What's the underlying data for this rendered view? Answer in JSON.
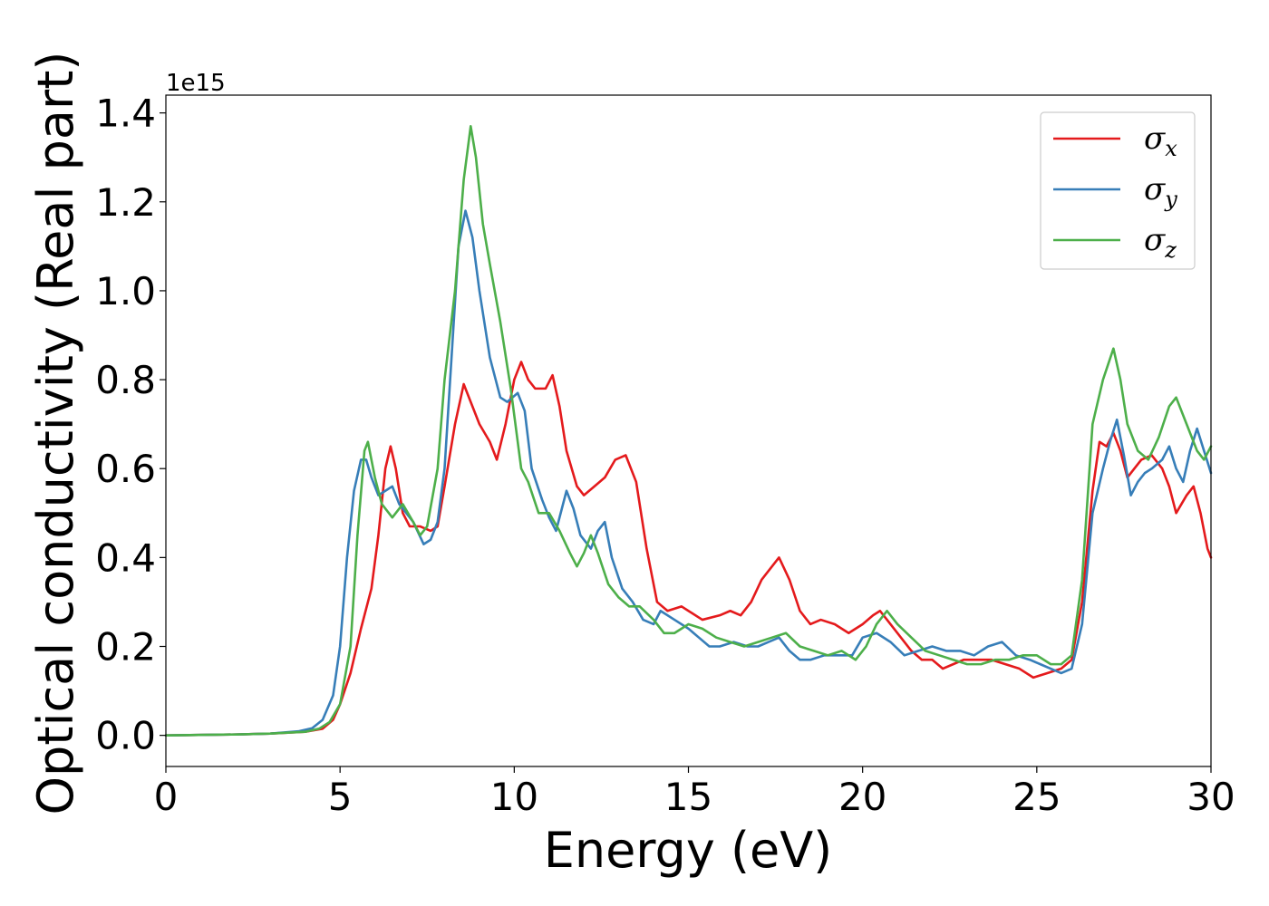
{
  "chart_data": {
    "type": "line",
    "xlabel": "Energy (eV)",
    "ylabel": "Optical conductivity (Real part)",
    "y_offset_text": "1e15",
    "xlim": [
      0,
      30
    ],
    "ylim": [
      -0.07,
      1.44
    ],
    "x_ticks": [
      0,
      5,
      10,
      15,
      20,
      25,
      30
    ],
    "x_tick_labels": [
      "0",
      "5",
      "10",
      "15",
      "20",
      "25",
      "30"
    ],
    "y_ticks": [
      0.0,
      0.2,
      0.4,
      0.6,
      0.8,
      1.0,
      1.2,
      1.4
    ],
    "y_tick_labels": [
      "0.0",
      "0.2",
      "0.4",
      "0.6",
      "0.8",
      "1.0",
      "1.2",
      "1.4"
    ],
    "grid": false,
    "legend_position": "top-right",
    "series": [
      {
        "name": "σx",
        "legend_main": "σ",
        "legend_sub": "x",
        "color": "#e41a1c",
        "points": [
          [
            0,
            0
          ],
          [
            2,
            0.002
          ],
          [
            3,
            0.004
          ],
          [
            4,
            0.008
          ],
          [
            4.5,
            0.015
          ],
          [
            4.8,
            0.035
          ],
          [
            5.0,
            0.07
          ],
          [
            5.3,
            0.14
          ],
          [
            5.6,
            0.24
          ],
          [
            5.9,
            0.33
          ],
          [
            6.1,
            0.45
          ],
          [
            6.3,
            0.6
          ],
          [
            6.45,
            0.65
          ],
          [
            6.6,
            0.6
          ],
          [
            6.8,
            0.5
          ],
          [
            7.0,
            0.47
          ],
          [
            7.3,
            0.47
          ],
          [
            7.6,
            0.46
          ],
          [
            7.8,
            0.47
          ],
          [
            8.0,
            0.56
          ],
          [
            8.3,
            0.7
          ],
          [
            8.55,
            0.79
          ],
          [
            8.75,
            0.75
          ],
          [
            9.0,
            0.7
          ],
          [
            9.3,
            0.66
          ],
          [
            9.5,
            0.62
          ],
          [
            9.75,
            0.7
          ],
          [
            10.0,
            0.8
          ],
          [
            10.2,
            0.84
          ],
          [
            10.4,
            0.8
          ],
          [
            10.6,
            0.78
          ],
          [
            10.9,
            0.78
          ],
          [
            11.1,
            0.81
          ],
          [
            11.3,
            0.74
          ],
          [
            11.5,
            0.64
          ],
          [
            11.8,
            0.56
          ],
          [
            12.0,
            0.54
          ],
          [
            12.3,
            0.56
          ],
          [
            12.6,
            0.58
          ],
          [
            12.9,
            0.62
          ],
          [
            13.2,
            0.63
          ],
          [
            13.5,
            0.57
          ],
          [
            13.8,
            0.42
          ],
          [
            14.1,
            0.3
          ],
          [
            14.4,
            0.28
          ],
          [
            14.8,
            0.29
          ],
          [
            15.0,
            0.28
          ],
          [
            15.4,
            0.26
          ],
          [
            15.9,
            0.27
          ],
          [
            16.2,
            0.28
          ],
          [
            16.5,
            0.27
          ],
          [
            16.8,
            0.3
          ],
          [
            17.1,
            0.35
          ],
          [
            17.6,
            0.4
          ],
          [
            17.9,
            0.35
          ],
          [
            18.2,
            0.28
          ],
          [
            18.5,
            0.25
          ],
          [
            18.8,
            0.26
          ],
          [
            19.2,
            0.25
          ],
          [
            19.6,
            0.23
          ],
          [
            20.0,
            0.25
          ],
          [
            20.3,
            0.27
          ],
          [
            20.5,
            0.28
          ],
          [
            20.8,
            0.25
          ],
          [
            21.1,
            0.22
          ],
          [
            21.4,
            0.19
          ],
          [
            21.7,
            0.17
          ],
          [
            22.0,
            0.17
          ],
          [
            22.3,
            0.15
          ],
          [
            22.6,
            0.16
          ],
          [
            22.9,
            0.17
          ],
          [
            23.3,
            0.17
          ],
          [
            23.7,
            0.17
          ],
          [
            24.1,
            0.16
          ],
          [
            24.5,
            0.15
          ],
          [
            24.9,
            0.13
          ],
          [
            25.3,
            0.14
          ],
          [
            25.7,
            0.15
          ],
          [
            26.0,
            0.17
          ],
          [
            26.3,
            0.3
          ],
          [
            26.6,
            0.55
          ],
          [
            26.8,
            0.66
          ],
          [
            27.0,
            0.65
          ],
          [
            27.2,
            0.68
          ],
          [
            27.4,
            0.64
          ],
          [
            27.6,
            0.58
          ],
          [
            27.8,
            0.6
          ],
          [
            28.0,
            0.62
          ],
          [
            28.3,
            0.63
          ],
          [
            28.6,
            0.6
          ],
          [
            28.8,
            0.56
          ],
          [
            29.0,
            0.5
          ],
          [
            29.3,
            0.54
          ],
          [
            29.5,
            0.56
          ],
          [
            29.7,
            0.5
          ],
          [
            29.9,
            0.42
          ],
          [
            30.0,
            0.4
          ]
        ]
      },
      {
        "name": "σy",
        "legend_main": "σ",
        "legend_sub": "y",
        "color": "#377eb8",
        "points": [
          [
            0,
            0
          ],
          [
            2,
            0.002
          ],
          [
            3,
            0.004
          ],
          [
            3.8,
            0.009
          ],
          [
            4.2,
            0.016
          ],
          [
            4.5,
            0.035
          ],
          [
            4.8,
            0.09
          ],
          [
            5.0,
            0.2
          ],
          [
            5.2,
            0.4
          ],
          [
            5.4,
            0.55
          ],
          [
            5.6,
            0.62
          ],
          [
            5.75,
            0.62
          ],
          [
            5.9,
            0.58
          ],
          [
            6.1,
            0.54
          ],
          [
            6.3,
            0.55
          ],
          [
            6.5,
            0.56
          ],
          [
            6.7,
            0.52
          ],
          [
            6.9,
            0.5
          ],
          [
            7.1,
            0.48
          ],
          [
            7.4,
            0.43
          ],
          [
            7.6,
            0.44
          ],
          [
            7.8,
            0.48
          ],
          [
            8.0,
            0.6
          ],
          [
            8.2,
            0.85
          ],
          [
            8.4,
            1.1
          ],
          [
            8.6,
            1.18
          ],
          [
            8.8,
            1.12
          ],
          [
            9.0,
            1.0
          ],
          [
            9.3,
            0.85
          ],
          [
            9.6,
            0.76
          ],
          [
            9.8,
            0.75
          ],
          [
            10.1,
            0.77
          ],
          [
            10.3,
            0.73
          ],
          [
            10.5,
            0.6
          ],
          [
            10.8,
            0.53
          ],
          [
            11.0,
            0.49
          ],
          [
            11.2,
            0.46
          ],
          [
            11.5,
            0.55
          ],
          [
            11.7,
            0.51
          ],
          [
            11.9,
            0.45
          ],
          [
            12.2,
            0.42
          ],
          [
            12.4,
            0.46
          ],
          [
            12.6,
            0.48
          ],
          [
            12.8,
            0.4
          ],
          [
            13.1,
            0.33
          ],
          [
            13.4,
            0.3
          ],
          [
            13.7,
            0.26
          ],
          [
            14.0,
            0.25
          ],
          [
            14.2,
            0.28
          ],
          [
            14.6,
            0.26
          ],
          [
            15.0,
            0.24
          ],
          [
            15.3,
            0.22
          ],
          [
            15.6,
            0.2
          ],
          [
            15.9,
            0.2
          ],
          [
            16.3,
            0.21
          ],
          [
            16.7,
            0.2
          ],
          [
            17.0,
            0.2
          ],
          [
            17.3,
            0.21
          ],
          [
            17.6,
            0.22
          ],
          [
            17.9,
            0.19
          ],
          [
            18.2,
            0.17
          ],
          [
            18.5,
            0.17
          ],
          [
            18.9,
            0.18
          ],
          [
            19.3,
            0.18
          ],
          [
            19.7,
            0.18
          ],
          [
            20.0,
            0.22
          ],
          [
            20.4,
            0.23
          ],
          [
            20.8,
            0.21
          ],
          [
            21.2,
            0.18
          ],
          [
            21.6,
            0.19
          ],
          [
            22.0,
            0.2
          ],
          [
            22.4,
            0.19
          ],
          [
            22.8,
            0.19
          ],
          [
            23.2,
            0.18
          ],
          [
            23.6,
            0.2
          ],
          [
            24.0,
            0.21
          ],
          [
            24.4,
            0.18
          ],
          [
            24.8,
            0.17
          ],
          [
            25.1,
            0.16
          ],
          [
            25.4,
            0.15
          ],
          [
            25.7,
            0.14
          ],
          [
            26.0,
            0.15
          ],
          [
            26.3,
            0.25
          ],
          [
            26.6,
            0.5
          ],
          [
            26.9,
            0.6
          ],
          [
            27.1,
            0.66
          ],
          [
            27.3,
            0.71
          ],
          [
            27.5,
            0.63
          ],
          [
            27.7,
            0.54
          ],
          [
            27.9,
            0.57
          ],
          [
            28.1,
            0.59
          ],
          [
            28.3,
            0.6
          ],
          [
            28.6,
            0.62
          ],
          [
            28.8,
            0.65
          ],
          [
            29.0,
            0.6
          ],
          [
            29.2,
            0.57
          ],
          [
            29.4,
            0.64
          ],
          [
            29.6,
            0.69
          ],
          [
            29.8,
            0.64
          ],
          [
            30.0,
            0.59
          ]
        ]
      },
      {
        "name": "σz",
        "legend_main": "σ",
        "legend_sub": "z",
        "color": "#4daf4a",
        "points": [
          [
            0,
            0
          ],
          [
            2,
            0.002
          ],
          [
            3,
            0.004
          ],
          [
            4,
            0.008
          ],
          [
            4.4,
            0.015
          ],
          [
            4.7,
            0.03
          ],
          [
            5.0,
            0.07
          ],
          [
            5.3,
            0.2
          ],
          [
            5.5,
            0.45
          ],
          [
            5.7,
            0.64
          ],
          [
            5.8,
            0.66
          ],
          [
            6.0,
            0.58
          ],
          [
            6.2,
            0.52
          ],
          [
            6.5,
            0.49
          ],
          [
            6.8,
            0.52
          ],
          [
            7.1,
            0.48
          ],
          [
            7.3,
            0.45
          ],
          [
            7.5,
            0.47
          ],
          [
            7.8,
            0.6
          ],
          [
            8.0,
            0.8
          ],
          [
            8.3,
            1.0
          ],
          [
            8.55,
            1.25
          ],
          [
            8.75,
            1.37
          ],
          [
            8.9,
            1.3
          ],
          [
            9.1,
            1.15
          ],
          [
            9.3,
            1.06
          ],
          [
            9.6,
            0.93
          ],
          [
            9.9,
            0.78
          ],
          [
            10.2,
            0.6
          ],
          [
            10.4,
            0.57
          ],
          [
            10.7,
            0.5
          ],
          [
            11.0,
            0.5
          ],
          [
            11.3,
            0.46
          ],
          [
            11.6,
            0.41
          ],
          [
            11.8,
            0.38
          ],
          [
            12.0,
            0.41
          ],
          [
            12.2,
            0.45
          ],
          [
            12.4,
            0.41
          ],
          [
            12.7,
            0.34
          ],
          [
            13.0,
            0.31
          ],
          [
            13.3,
            0.29
          ],
          [
            13.6,
            0.29
          ],
          [
            14.0,
            0.26
          ],
          [
            14.3,
            0.23
          ],
          [
            14.6,
            0.23
          ],
          [
            15.0,
            0.25
          ],
          [
            15.4,
            0.24
          ],
          [
            15.8,
            0.22
          ],
          [
            16.2,
            0.21
          ],
          [
            16.6,
            0.2
          ],
          [
            17.0,
            0.21
          ],
          [
            17.4,
            0.22
          ],
          [
            17.8,
            0.23
          ],
          [
            18.2,
            0.2
          ],
          [
            18.6,
            0.19
          ],
          [
            19.0,
            0.18
          ],
          [
            19.4,
            0.19
          ],
          [
            19.8,
            0.17
          ],
          [
            20.1,
            0.2
          ],
          [
            20.4,
            0.25
          ],
          [
            20.7,
            0.28
          ],
          [
            21.0,
            0.25
          ],
          [
            21.4,
            0.22
          ],
          [
            21.8,
            0.19
          ],
          [
            22.2,
            0.18
          ],
          [
            22.6,
            0.17
          ],
          [
            23.0,
            0.16
          ],
          [
            23.4,
            0.16
          ],
          [
            23.8,
            0.17
          ],
          [
            24.2,
            0.17
          ],
          [
            24.6,
            0.18
          ],
          [
            25.0,
            0.18
          ],
          [
            25.4,
            0.16
          ],
          [
            25.7,
            0.16
          ],
          [
            26.0,
            0.18
          ],
          [
            26.3,
            0.35
          ],
          [
            26.6,
            0.7
          ],
          [
            26.9,
            0.8
          ],
          [
            27.2,
            0.87
          ],
          [
            27.4,
            0.8
          ],
          [
            27.6,
            0.7
          ],
          [
            27.9,
            0.64
          ],
          [
            28.2,
            0.62
          ],
          [
            28.5,
            0.67
          ],
          [
            28.8,
            0.74
          ],
          [
            29.0,
            0.76
          ],
          [
            29.3,
            0.7
          ],
          [
            29.6,
            0.64
          ],
          [
            29.8,
            0.62
          ],
          [
            30.0,
            0.65
          ]
        ]
      }
    ]
  }
}
